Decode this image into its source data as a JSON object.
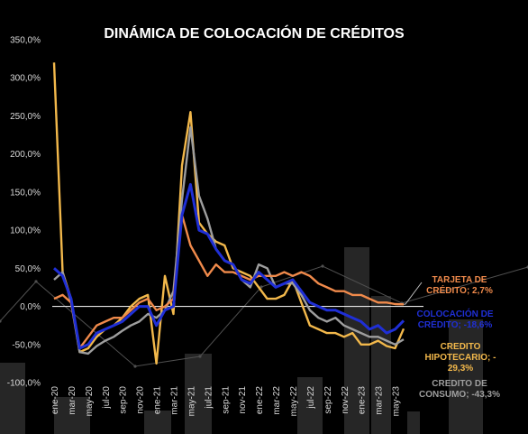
{
  "chart_data": {
    "type": "line",
    "title": "DINÁMICA DE COLOCACIÓN DE CRÉDITOS",
    "y_ticks": [
      "350,0%",
      "300,0%",
      "250,0%",
      "200,0%",
      "150,0%",
      "100,0%",
      "50,0%",
      "0,0%",
      "-50,0%",
      "-100,0%"
    ],
    "ylim": [
      -100,
      350
    ],
    "x_ticks": [
      "ene-20",
      "mar-20",
      "may-20",
      "jul-20",
      "sep-20",
      "nov-20",
      "ene-21",
      "mar-21",
      "may-21",
      "jul-21",
      "sep-21",
      "nov-21",
      "ene-22",
      "mar-22",
      "may-22",
      "jul-22",
      "sep-22",
      "nov-22",
      "ene-23",
      "mar-23",
      "may-23"
    ],
    "months": 42,
    "colors": {
      "tarjeta": "#f08a4b",
      "colocacion": "#1f2fd6",
      "hipotecario": "#f2b84b",
      "consumo": "#9e9e9e",
      "background_line": "#505050",
      "background_bar": "#262626",
      "zero_line": "#e6e6e6"
    },
    "series": [
      {
        "key": "hipotecario",
        "label_lines": [
          "CREDITO",
          "HIPOTECARIO; -",
          "29,3%"
        ],
        "values": [
          320,
          45,
          10,
          -60,
          -55,
          -40,
          -30,
          -25,
          -15,
          0,
          10,
          15,
          -75,
          40,
          -10,
          185,
          255,
          110,
          95,
          85,
          80,
          50,
          45,
          40,
          25,
          10,
          10,
          15,
          35,
          5,
          -25,
          -30,
          -35,
          -35,
          -40,
          -35,
          -50,
          -50,
          -45,
          -52,
          -55,
          -29.3
        ]
      },
      {
        "key": "consumo",
        "label_lines": [
          "CREDITO DE",
          "CONSUMO; -43,3%"
        ],
        "values": [
          35,
          45,
          5,
          -60,
          -62,
          -52,
          -45,
          -40,
          -32,
          -25,
          -20,
          -10,
          -15,
          -5,
          20,
          140,
          235,
          145,
          115,
          75,
          60,
          55,
          35,
          25,
          55,
          50,
          25,
          30,
          30,
          15,
          -5,
          -15,
          -20,
          -15,
          -25,
          -30,
          -35,
          -40,
          -40,
          -45,
          -50,
          -43.3
        ]
      },
      {
        "key": "tarjeta",
        "label_lines": [
          "TARJETA DE",
          "CRÉDITO; 2,7%"
        ],
        "values": [
          10,
          15,
          5,
          -55,
          -40,
          -25,
          -20,
          -15,
          -15,
          -5,
          5,
          10,
          -5,
          0,
          10,
          120,
          80,
          60,
          40,
          55,
          45,
          45,
          40,
          35,
          40,
          40,
          40,
          45,
          40,
          45,
          40,
          30,
          25,
          20,
          20,
          15,
          15,
          10,
          5,
          5,
          3,
          2.7
        ]
      },
      {
        "key": "colocacion",
        "label_lines": [
          "COLOCACIÓN DE",
          "CRÉDITO; -18,6%"
        ],
        "values": [
          50,
          40,
          10,
          -55,
          -50,
          -35,
          -30,
          -25,
          -20,
          -10,
          0,
          0,
          -25,
          -5,
          0,
          120,
          160,
          100,
          95,
          75,
          60,
          55,
          35,
          30,
          45,
          35,
          25,
          30,
          35,
          20,
          5,
          0,
          -5,
          -5,
          -10,
          -15,
          -20,
          -30,
          -25,
          -35,
          -30,
          -18.6
        ]
      }
    ]
  }
}
